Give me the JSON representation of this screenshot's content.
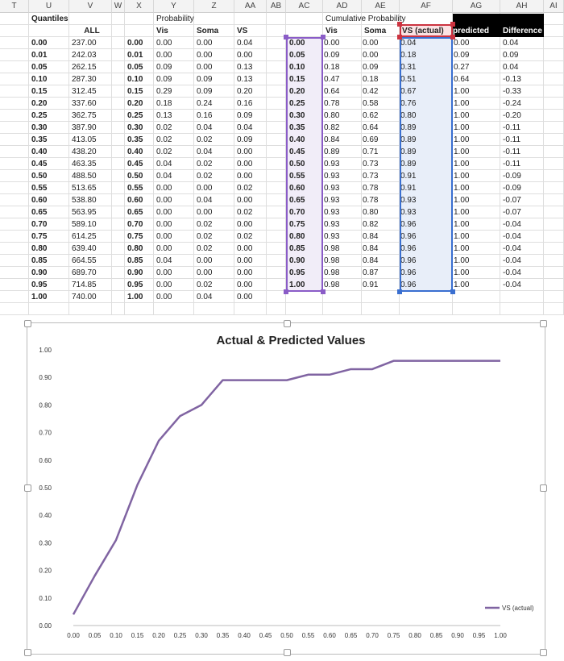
{
  "columns": [
    "T",
    "U",
    "V",
    "W",
    "X",
    "Y",
    "Z",
    "AA",
    "AB",
    "AC",
    "AD",
    "AE",
    "AF",
    "AG",
    "AH",
    "AI"
  ],
  "headers": {
    "quantiles": "Quantiles",
    "all": "ALL",
    "probability": "Probability",
    "vis": "Vis",
    "soma": "Soma",
    "vs": "VS",
    "cumulative": "Cumulative Probability",
    "cvis": "Vis",
    "csoma": "Soma",
    "vs_actual": "VS (actual)",
    "predicted": "predicted",
    "difference": "Difference"
  },
  "rows": [
    [
      "0.00",
      "237.00",
      "0.00",
      "0.00",
      "0.00",
      "0.04",
      "0.00",
      "0.00",
      "0.00",
      "0.04",
      "0.00",
      "0.04"
    ],
    [
      "0.01",
      "242.03",
      "0.01",
      "0.00",
      "0.00",
      "0.00",
      "0.05",
      "0.09",
      "0.00",
      "0.18",
      "0.09",
      "0.09"
    ],
    [
      "0.05",
      "262.15",
      "0.05",
      "0.09",
      "0.00",
      "0.13",
      "0.10",
      "0.18",
      "0.09",
      "0.31",
      "0.27",
      "0.04"
    ],
    [
      "0.10",
      "287.30",
      "0.10",
      "0.09",
      "0.09",
      "0.13",
      "0.15",
      "0.47",
      "0.18",
      "0.51",
      "0.64",
      "-0.13"
    ],
    [
      "0.15",
      "312.45",
      "0.15",
      "0.29",
      "0.09",
      "0.20",
      "0.20",
      "0.64",
      "0.42",
      "0.67",
      "1.00",
      "-0.33"
    ],
    [
      "0.20",
      "337.60",
      "0.20",
      "0.18",
      "0.24",
      "0.16",
      "0.25",
      "0.78",
      "0.58",
      "0.76",
      "1.00",
      "-0.24"
    ],
    [
      "0.25",
      "362.75",
      "0.25",
      "0.13",
      "0.16",
      "0.09",
      "0.30",
      "0.80",
      "0.62",
      "0.80",
      "1.00",
      "-0.20"
    ],
    [
      "0.30",
      "387.90",
      "0.30",
      "0.02",
      "0.04",
      "0.04",
      "0.35",
      "0.82",
      "0.64",
      "0.89",
      "1.00",
      "-0.11"
    ],
    [
      "0.35",
      "413.05",
      "0.35",
      "0.02",
      "0.02",
      "0.09",
      "0.40",
      "0.84",
      "0.69",
      "0.89",
      "1.00",
      "-0.11"
    ],
    [
      "0.40",
      "438.20",
      "0.40",
      "0.02",
      "0.04",
      "0.00",
      "0.45",
      "0.89",
      "0.71",
      "0.89",
      "1.00",
      "-0.11"
    ],
    [
      "0.45",
      "463.35",
      "0.45",
      "0.04",
      "0.02",
      "0.00",
      "0.50",
      "0.93",
      "0.73",
      "0.89",
      "1.00",
      "-0.11"
    ],
    [
      "0.50",
      "488.50",
      "0.50",
      "0.04",
      "0.02",
      "0.00",
      "0.55",
      "0.93",
      "0.73",
      "0.91",
      "1.00",
      "-0.09"
    ],
    [
      "0.55",
      "513.65",
      "0.55",
      "0.00",
      "0.00",
      "0.02",
      "0.60",
      "0.93",
      "0.78",
      "0.91",
      "1.00",
      "-0.09"
    ],
    [
      "0.60",
      "538.80",
      "0.60",
      "0.00",
      "0.04",
      "0.00",
      "0.65",
      "0.93",
      "0.78",
      "0.93",
      "1.00",
      "-0.07"
    ],
    [
      "0.65",
      "563.95",
      "0.65",
      "0.00",
      "0.00",
      "0.02",
      "0.70",
      "0.93",
      "0.80",
      "0.93",
      "1.00",
      "-0.07"
    ],
    [
      "0.70",
      "589.10",
      "0.70",
      "0.00",
      "0.02",
      "0.00",
      "0.75",
      "0.93",
      "0.82",
      "0.96",
      "1.00",
      "-0.04"
    ],
    [
      "0.75",
      "614.25",
      "0.75",
      "0.00",
      "0.02",
      "0.02",
      "0.80",
      "0.93",
      "0.84",
      "0.96",
      "1.00",
      "-0.04"
    ],
    [
      "0.80",
      "639.40",
      "0.80",
      "0.00",
      "0.02",
      "0.00",
      "0.85",
      "0.98",
      "0.84",
      "0.96",
      "1.00",
      "-0.04"
    ],
    [
      "0.85",
      "664.55",
      "0.85",
      "0.04",
      "0.00",
      "0.00",
      "0.90",
      "0.98",
      "0.84",
      "0.96",
      "1.00",
      "-0.04"
    ],
    [
      "0.90",
      "689.70",
      "0.90",
      "0.00",
      "0.00",
      "0.00",
      "0.95",
      "0.98",
      "0.87",
      "0.96",
      "1.00",
      "-0.04"
    ],
    [
      "0.95",
      "714.85",
      "0.95",
      "0.00",
      "0.02",
      "0.00",
      "1.00",
      "0.98",
      "0.91",
      "0.96",
      "1.00",
      "-0.04"
    ],
    [
      "1.00",
      "740.00",
      "1.00",
      "0.00",
      "0.04",
      "0.00",
      "",
      "",
      "",
      "",
      "",
      ""
    ]
  ],
  "colors": {
    "series": "#8064a2",
    "purple_sel": "#8a5cc7",
    "blue_sel": "#3a6fd0",
    "red_sel": "#cc3340",
    "header_black": "#000000"
  },
  "chart_data": {
    "type": "line",
    "title": "Actual & Predicted Values",
    "x": [
      0.0,
      0.05,
      0.1,
      0.15,
      0.2,
      0.25,
      0.3,
      0.35,
      0.4,
      0.45,
      0.5,
      0.55,
      0.6,
      0.65,
      0.7,
      0.75,
      0.8,
      0.85,
      0.9,
      0.95,
      1.0
    ],
    "x_ticks": [
      "0.00",
      "0.05",
      "0.10",
      "0.15",
      "0.20",
      "0.25",
      "0.30",
      "0.35",
      "0.40",
      "0.45",
      "0.50",
      "0.55",
      "0.60",
      "0.65",
      "0.70",
      "0.75",
      "0.80",
      "0.85",
      "0.90",
      "0.95",
      "1.00"
    ],
    "y_ticks": [
      "0.00",
      "0.10",
      "0.20",
      "0.30",
      "0.40",
      "0.50",
      "0.60",
      "0.70",
      "0.80",
      "0.90",
      "1.00"
    ],
    "series": [
      {
        "name": "VS (actual)",
        "values": [
          0.04,
          0.18,
          0.31,
          0.51,
          0.67,
          0.76,
          0.8,
          0.89,
          0.89,
          0.89,
          0.89,
          0.91,
          0.91,
          0.93,
          0.93,
          0.96,
          0.96,
          0.96,
          0.96,
          0.96,
          0.96
        ]
      }
    ],
    "ylim": [
      0,
      1
    ],
    "xlim": [
      0,
      1
    ],
    "grid": false,
    "legend": "bottom-right"
  }
}
